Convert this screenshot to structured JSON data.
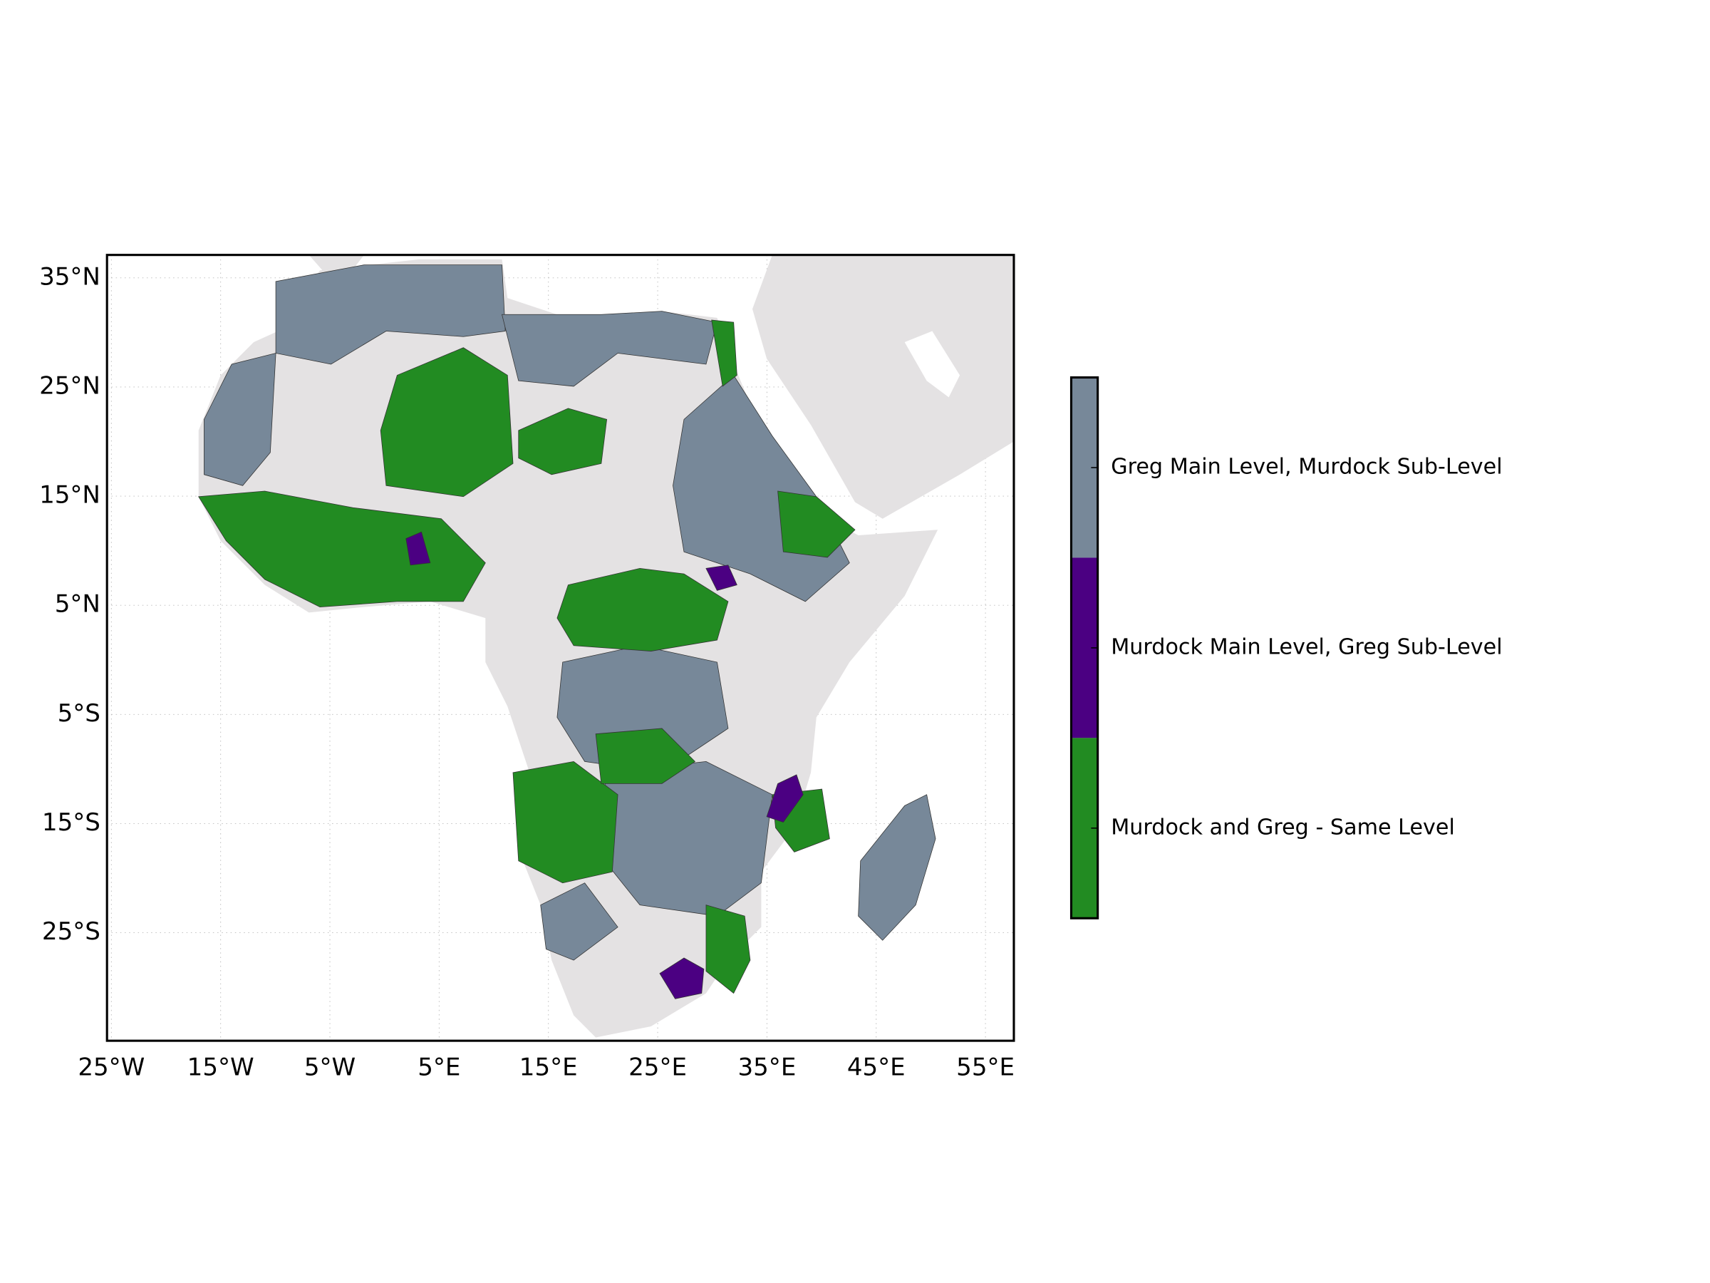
{
  "chart_data": {
    "type": "map",
    "xlim": [
      -25.4,
      57.6
    ],
    "ylim": [
      -34.9,
      37.1
    ],
    "xticks": [
      {
        "value": -25,
        "label": "25°W"
      },
      {
        "value": -15,
        "label": "15°W"
      },
      {
        "value": -5,
        "label": "5°W"
      },
      {
        "value": 5,
        "label": "5°E"
      },
      {
        "value": 15,
        "label": "15°E"
      },
      {
        "value": 25,
        "label": "25°E"
      },
      {
        "value": 35,
        "label": "35°E"
      },
      {
        "value": 45,
        "label": "45°E"
      },
      {
        "value": 55,
        "label": "55°E"
      }
    ],
    "yticks": [
      {
        "value": 35,
        "label": "35°N"
      },
      {
        "value": 25,
        "label": "25°N"
      },
      {
        "value": 15,
        "label": "15°N"
      },
      {
        "value": 5,
        "label": "5°N"
      },
      {
        "value": -5,
        "label": "5°S"
      },
      {
        "value": -15,
        "label": "15°S"
      },
      {
        "value": -25,
        "label": "25°S"
      }
    ],
    "grid": true,
    "legend": [
      {
        "name": "Greg Main Level, Murdock Sub-Level",
        "color": "#778899"
      },
      {
        "name": "Murdock Main Level, Greg Sub-Level",
        "color": "#4b0082"
      },
      {
        "name": "Murdock and Greg - Same Level",
        "color": "#228b22"
      }
    ]
  }
}
